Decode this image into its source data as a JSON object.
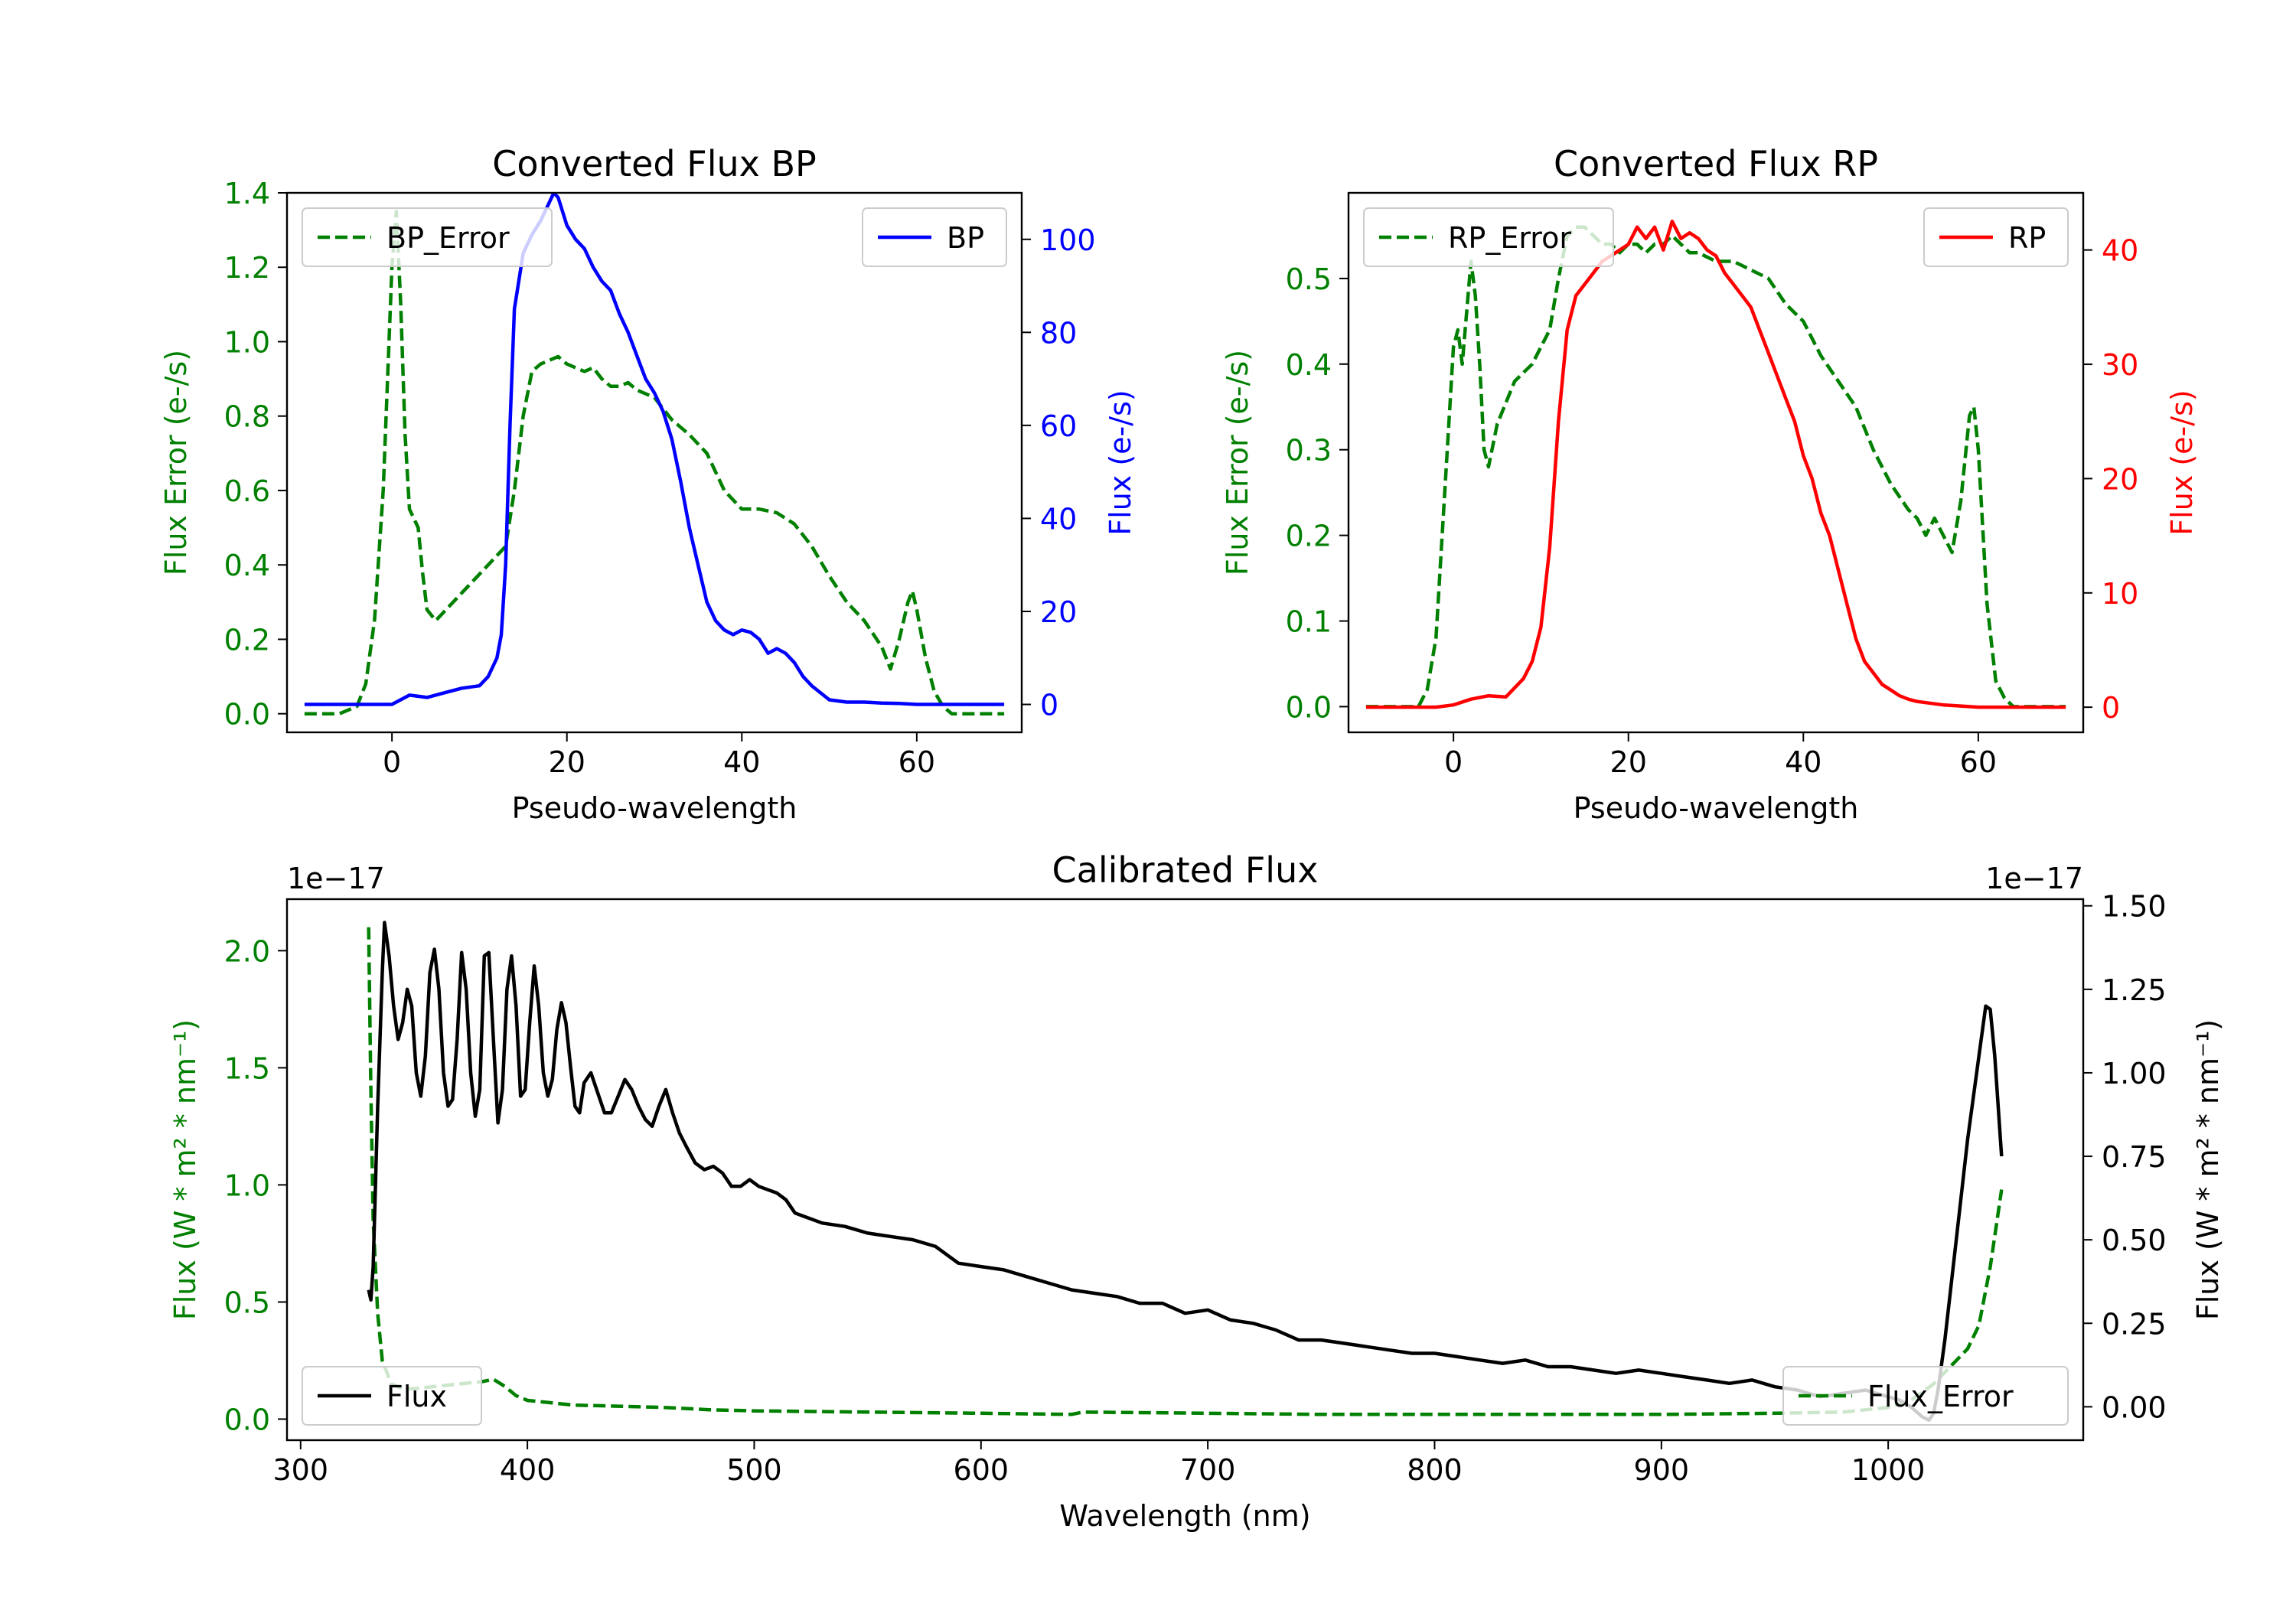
{
  "chart_data": [
    {
      "id": "bp",
      "type": "line",
      "title": "Converted Flux BP",
      "xlabel": "Pseudo-wavelength",
      "ylabel_left": "Flux Error (e-/s)",
      "ylabel_right": "Flux (e-/s)",
      "xlim": [
        -12,
        72
      ],
      "ylim_left": [
        -0.05,
        1.4
      ],
      "ylim_right": [
        -6,
        110
      ],
      "x_ticks": [
        0,
        20,
        40,
        60
      ],
      "left_ticks": [
        0.0,
        0.2,
        0.4,
        0.6,
        0.8,
        1.0,
        1.2,
        1.4
      ],
      "left_tick_labels": [
        "0.0",
        "0.2",
        "0.4",
        "0.6",
        "0.8",
        "1.0",
        "1.2",
        "1.4"
      ],
      "right_ticks": [
        0,
        20,
        40,
        60,
        80,
        100
      ],
      "right_tick_labels": [
        "0",
        "20",
        "40",
        "60",
        "80",
        "100"
      ],
      "left_color": "#008000",
      "right_color": "#0000ff",
      "series": [
        {
          "name": "BP_Error",
          "axis": "left",
          "style": "dashed",
          "color": "#008000",
          "x": [
            -10,
            -6,
            -4,
            -3,
            -2,
            -1,
            0,
            0.5,
            1,
            1.5,
            2,
            3,
            3.5,
            4,
            5,
            7,
            9,
            11,
            13,
            14,
            15,
            16,
            17,
            18,
            19,
            20,
            21,
            22,
            23,
            24,
            25,
            26,
            27,
            28,
            29,
            30,
            31,
            32,
            33,
            34,
            36,
            38,
            40,
            42,
            44,
            46,
            48,
            50,
            52,
            54,
            56,
            57,
            58,
            59,
            59.5,
            60,
            61,
            62,
            63,
            64,
            66,
            68,
            70
          ],
          "y": [
            0.0,
            0.0,
            0.02,
            0.08,
            0.25,
            0.6,
            1.2,
            1.35,
            1.1,
            0.75,
            0.55,
            0.5,
            0.38,
            0.28,
            0.25,
            0.3,
            0.35,
            0.4,
            0.45,
            0.6,
            0.8,
            0.92,
            0.94,
            0.95,
            0.96,
            0.94,
            0.93,
            0.92,
            0.93,
            0.9,
            0.88,
            0.88,
            0.89,
            0.87,
            0.86,
            0.85,
            0.82,
            0.79,
            0.77,
            0.75,
            0.7,
            0.6,
            0.55,
            0.55,
            0.54,
            0.51,
            0.45,
            0.37,
            0.3,
            0.25,
            0.18,
            0.12,
            0.2,
            0.3,
            0.33,
            0.28,
            0.15,
            0.06,
            0.02,
            0.0,
            0.0,
            0.0,
            0.0
          ]
        },
        {
          "name": "BP",
          "axis": "right",
          "style": "solid",
          "color": "#0000ff",
          "x": [
            -10,
            -6,
            -2,
            0,
            2,
            4,
            6,
            8,
            10,
            11,
            12,
            12.5,
            13,
            13.5,
            14,
            15,
            16,
            17,
            18,
            18.5,
            19,
            20,
            21,
            22,
            23,
            24,
            25,
            26,
            27,
            28,
            29,
            30,
            31,
            32,
            33,
            34,
            35,
            36,
            37,
            38,
            39,
            40,
            41,
            42,
            43,
            44,
            45,
            46,
            47,
            48,
            50,
            52,
            54,
            56,
            58,
            60,
            62,
            66,
            70
          ],
          "y": [
            0,
            0,
            0,
            0,
            2,
            1.5,
            2.5,
            3.5,
            4,
            6,
            10,
            15,
            30,
            60,
            85,
            97,
            101,
            104,
            108,
            110,
            109,
            103,
            100,
            98,
            94,
            91,
            89,
            84,
            80,
            75,
            70,
            67,
            63,
            57,
            48,
            38,
            30,
            22,
            18,
            16,
            15,
            16,
            15.5,
            14,
            11,
            12,
            11,
            9,
            6,
            4,
            1,
            0.5,
            0.5,
            0.3,
            0.2,
            0,
            0,
            0,
            0
          ]
        }
      ],
      "legend": [
        {
          "label": "BP_Error",
          "position": "upper left"
        },
        {
          "label": "BP",
          "position": "upper right"
        }
      ]
    },
    {
      "id": "rp",
      "type": "line",
      "title": "Converted Flux RP",
      "xlabel": "Pseudo-wavelength",
      "ylabel_left": "Flux Error (e-/s)",
      "ylabel_right": "Flux (e-/s)",
      "xlim": [
        -12,
        72
      ],
      "ylim_left": [
        -0.03,
        0.6
      ],
      "ylim_right": [
        -2.2,
        45
      ],
      "x_ticks": [
        0,
        20,
        40,
        60
      ],
      "left_ticks": [
        0.0,
        0.1,
        0.2,
        0.3,
        0.4,
        0.5
      ],
      "left_tick_labels": [
        "0.0",
        "0.1",
        "0.2",
        "0.3",
        "0.4",
        "0.5"
      ],
      "right_ticks": [
        0,
        10,
        20,
        30,
        40
      ],
      "right_tick_labels": [
        "0",
        "10",
        "20",
        "30",
        "40"
      ],
      "left_color": "#008000",
      "right_color": "#ff0000",
      "series": [
        {
          "name": "RP_Error",
          "axis": "left",
          "style": "dashed",
          "color": "#008000",
          "x": [
            -10,
            -6,
            -4,
            -3,
            -2,
            -1,
            0,
            0.5,
            1,
            1.5,
            2,
            2.5,
            3,
            3.5,
            4,
            5,
            7,
            9,
            11,
            12,
            13,
            14,
            15,
            16,
            17,
            18,
            19,
            20,
            21,
            22,
            23,
            24,
            25,
            26,
            27,
            28,
            30,
            32,
            34,
            36,
            38,
            40,
            42,
            44,
            46,
            48,
            50,
            52,
            53,
            54,
            55,
            56,
            57,
            58,
            59,
            59.5,
            60,
            61,
            62,
            63,
            64,
            66,
            68,
            70
          ],
          "y": [
            0.0,
            0.0,
            0.0,
            0.02,
            0.08,
            0.25,
            0.42,
            0.44,
            0.4,
            0.46,
            0.52,
            0.48,
            0.4,
            0.3,
            0.28,
            0.33,
            0.38,
            0.4,
            0.44,
            0.5,
            0.55,
            0.56,
            0.56,
            0.55,
            0.54,
            0.54,
            0.53,
            0.54,
            0.54,
            0.53,
            0.54,
            0.54,
            0.55,
            0.54,
            0.53,
            0.53,
            0.52,
            0.52,
            0.51,
            0.5,
            0.47,
            0.45,
            0.41,
            0.38,
            0.35,
            0.3,
            0.26,
            0.23,
            0.22,
            0.2,
            0.22,
            0.2,
            0.18,
            0.24,
            0.34,
            0.35,
            0.3,
            0.12,
            0.03,
            0.01,
            0.0,
            0.0,
            0.0,
            0.0
          ]
        },
        {
          "name": "RP",
          "axis": "right",
          "style": "solid",
          "color": "#ff0000",
          "x": [
            -10,
            -6,
            -2,
            0,
            2,
            4,
            6,
            8,
            9,
            10,
            11,
            12,
            13,
            14,
            15,
            16,
            17,
            18,
            19,
            20,
            21,
            22,
            23,
            24,
            25,
            26,
            27,
            28,
            29,
            30,
            31,
            32,
            33,
            34,
            35,
            36,
            37,
            38,
            39,
            40,
            41,
            42,
            43,
            44,
            45,
            46,
            47,
            48,
            49,
            50,
            51,
            52,
            53,
            54,
            56,
            58,
            60,
            64,
            70
          ],
          "y": [
            0,
            0,
            0,
            0.2,
            0.7,
            1,
            0.9,
            2.5,
            4,
            7,
            14,
            25,
            33,
            36,
            37,
            38,
            39,
            39.5,
            40,
            40.5,
            42,
            41,
            42,
            40,
            42.5,
            41,
            41.5,
            41,
            40,
            39.5,
            38,
            37,
            36,
            35,
            33,
            31,
            29,
            27,
            25,
            22,
            20,
            17,
            15,
            12,
            9,
            6,
            4,
            3,
            2,
            1.5,
            1,
            0.7,
            0.5,
            0.4,
            0.2,
            0.1,
            0,
            0,
            0
          ]
        }
      ],
      "legend": [
        {
          "label": "RP_Error",
          "position": "upper left"
        },
        {
          "label": "RP",
          "position": "upper right"
        }
      ]
    },
    {
      "id": "cal",
      "type": "line",
      "title": "Calibrated Flux",
      "xlabel": "Wavelength (nm)",
      "ylabel_left": "Flux (W * m² * nm⁻¹)",
      "ylabel_right": "Flux (W * m² * nm⁻¹)",
      "left_offset": "1e−17",
      "right_offset": "1e−17",
      "xlim": [
        294,
        1086
      ],
      "ylim_left": [
        -0.09,
        2.22
      ],
      "ylim_right": [
        -0.1,
        1.52
      ],
      "x_ticks": [
        300,
        400,
        500,
        600,
        700,
        800,
        900,
        1000
      ],
      "x_tick_labels": [
        "300",
        "400",
        "500",
        "600",
        "700",
        "800",
        "900",
        "1000"
      ],
      "left_ticks": [
        0.0,
        0.5,
        1.0,
        1.5,
        2.0
      ],
      "left_tick_labels": [
        "0.0",
        "0.5",
        "1.0",
        "1.5",
        "2.0"
      ],
      "right_ticks": [
        0.0,
        0.25,
        0.5,
        0.75,
        1.0,
        1.25,
        1.5
      ],
      "right_tick_labels": [
        "0.00",
        "0.25",
        "0.50",
        "0.75",
        "1.00",
        "1.25",
        "1.50"
      ],
      "left_color": "#008000",
      "right_color": "#000000",
      "series": [
        {
          "name": "Flux_Error",
          "axis": "left",
          "style": "dashed",
          "color": "#008000",
          "x": [
            330,
            331,
            332,
            334,
            336,
            340,
            345,
            350,
            360,
            370,
            380,
            385,
            390,
            395,
            400,
            410,
            420,
            440,
            460,
            480,
            500,
            550,
            600,
            640,
            645,
            700,
            750,
            800,
            850,
            900,
            950,
            980,
            1000,
            1010,
            1020,
            1030,
            1035,
            1040,
            1045,
            1050
          ],
          "y": [
            2.1,
            1.4,
            0.85,
            0.45,
            0.25,
            0.15,
            0.13,
            0.13,
            0.14,
            0.15,
            0.16,
            0.17,
            0.14,
            0.1,
            0.08,
            0.07,
            0.06,
            0.055,
            0.05,
            0.04,
            0.035,
            0.03,
            0.025,
            0.02,
            0.03,
            0.025,
            0.02,
            0.02,
            0.02,
            0.02,
            0.025,
            0.03,
            0.05,
            0.08,
            0.15,
            0.25,
            0.3,
            0.4,
            0.65,
            0.98
          ]
        },
        {
          "name": "Flux",
          "axis": "right",
          "style": "solid",
          "color": "#000000",
          "x": [
            330,
            331,
            332,
            334,
            336,
            337,
            339,
            341,
            343,
            345,
            347,
            349,
            351,
            353,
            355,
            357,
            359,
            361,
            363,
            365,
            367,
            369,
            371,
            373,
            375,
            377,
            379,
            381,
            383,
            385,
            387,
            389,
            391,
            393,
            395,
            397,
            399,
            401,
            403,
            405,
            407,
            409,
            411,
            413,
            415,
            417,
            419,
            421,
            423,
            425,
            428,
            431,
            434,
            437,
            440,
            443,
            446,
            449,
            452,
            455,
            458,
            461,
            464,
            467,
            470,
            474,
            478,
            482,
            486,
            490,
            494,
            498,
            502,
            506,
            510,
            514,
            518,
            522,
            530,
            540,
            550,
            560,
            570,
            580,
            590,
            600,
            610,
            620,
            630,
            640,
            650,
            660,
            670,
            680,
            690,
            700,
            710,
            720,
            730,
            740,
            750,
            760,
            770,
            780,
            790,
            800,
            810,
            820,
            830,
            840,
            850,
            860,
            870,
            880,
            890,
            900,
            910,
            920,
            930,
            940,
            950,
            960,
            970,
            980,
            990,
            1000,
            1005,
            1010,
            1015,
            1018,
            1020,
            1022,
            1025,
            1030,
            1035,
            1040,
            1043,
            1045,
            1047,
            1050
          ],
          "y": [
            0.35,
            0.32,
            0.42,
            0.9,
            1.3,
            1.45,
            1.35,
            1.2,
            1.1,
            1.15,
            1.25,
            1.2,
            1.0,
            0.93,
            1.05,
            1.3,
            1.37,
            1.25,
            1.0,
            0.9,
            0.92,
            1.1,
            1.36,
            1.25,
            1.0,
            0.87,
            0.95,
            1.35,
            1.36,
            1.1,
            0.85,
            0.95,
            1.25,
            1.35,
            1.2,
            0.93,
            0.95,
            1.15,
            1.32,
            1.2,
            1.0,
            0.93,
            0.98,
            1.13,
            1.21,
            1.15,
            1.02,
            0.9,
            0.88,
            0.97,
            1.0,
            0.94,
            0.88,
            0.88,
            0.93,
            0.98,
            0.95,
            0.9,
            0.86,
            0.84,
            0.9,
            0.95,
            0.88,
            0.82,
            0.78,
            0.73,
            0.71,
            0.72,
            0.7,
            0.66,
            0.66,
            0.68,
            0.66,
            0.65,
            0.64,
            0.62,
            0.58,
            0.57,
            0.55,
            0.54,
            0.52,
            0.51,
            0.5,
            0.48,
            0.43,
            0.42,
            0.41,
            0.39,
            0.37,
            0.35,
            0.34,
            0.33,
            0.31,
            0.31,
            0.28,
            0.29,
            0.26,
            0.25,
            0.23,
            0.2,
            0.2,
            0.19,
            0.18,
            0.17,
            0.16,
            0.16,
            0.15,
            0.14,
            0.13,
            0.14,
            0.12,
            0.12,
            0.11,
            0.1,
            0.11,
            0.1,
            0.09,
            0.08,
            0.07,
            0.08,
            0.06,
            0.05,
            0.03,
            0.04,
            0.05,
            0.03,
            0.02,
            0.0,
            -0.03,
            -0.04,
            -0.02,
            0.05,
            0.2,
            0.5,
            0.8,
            1.05,
            1.2,
            1.19,
            1.05,
            0.75
          ]
        }
      ],
      "legend": [
        {
          "label": "Flux",
          "position": "lower left"
        },
        {
          "label": "Flux_Error",
          "position": "lower right"
        }
      ]
    }
  ]
}
